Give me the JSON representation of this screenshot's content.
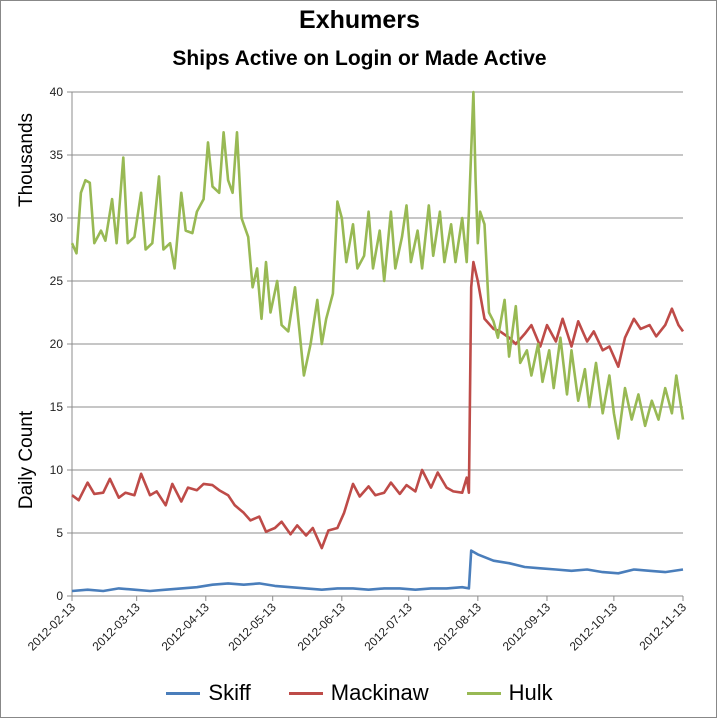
{
  "chart_data": {
    "type": "line",
    "title": "Exhumers",
    "subtitle": "Ships Active on Login or Made Active",
    "ylabel_upper": "Thousands",
    "ylabel_lower": "Daily Count",
    "ylim": [
      0,
      40
    ],
    "yticks": [
      0,
      5,
      10,
      15,
      20,
      25,
      30,
      35,
      40
    ],
    "xlim": [
      "2012-02-13",
      "2012-11-13"
    ],
    "xticks": [
      "2012-02-13",
      "2012-03-13",
      "2012-04-13",
      "2012-05-13",
      "2012-06-13",
      "2012-07-13",
      "2012-08-13",
      "2012-09-13",
      "2012-10-13",
      "2012-11-13"
    ],
    "grid": "horizontal",
    "legend": "bottom",
    "series": [
      {
        "name": "Skiff",
        "color": "#4a7ebb",
        "points": [
          [
            "2012-02-13",
            0.4
          ],
          [
            "2012-02-20",
            0.5
          ],
          [
            "2012-02-27",
            0.4
          ],
          [
            "2012-03-05",
            0.6
          ],
          [
            "2012-03-12",
            0.5
          ],
          [
            "2012-03-19",
            0.4
          ],
          [
            "2012-03-26",
            0.5
          ],
          [
            "2012-04-02",
            0.6
          ],
          [
            "2012-04-09",
            0.7
          ],
          [
            "2012-04-16",
            0.9
          ],
          [
            "2012-04-23",
            1.0
          ],
          [
            "2012-04-30",
            0.9
          ],
          [
            "2012-05-07",
            1.0
          ],
          [
            "2012-05-14",
            0.8
          ],
          [
            "2012-05-21",
            0.7
          ],
          [
            "2012-05-28",
            0.6
          ],
          [
            "2012-06-04",
            0.5
          ],
          [
            "2012-06-11",
            0.6
          ],
          [
            "2012-06-18",
            0.6
          ],
          [
            "2012-06-25",
            0.5
          ],
          [
            "2012-07-02",
            0.6
          ],
          [
            "2012-07-09",
            0.6
          ],
          [
            "2012-07-16",
            0.5
          ],
          [
            "2012-07-23",
            0.6
          ],
          [
            "2012-07-30",
            0.6
          ],
          [
            "2012-08-06",
            0.7
          ],
          [
            "2012-08-09",
            0.6
          ],
          [
            "2012-08-10",
            3.6
          ],
          [
            "2012-08-13",
            3.3
          ],
          [
            "2012-08-20",
            2.8
          ],
          [
            "2012-08-27",
            2.6
          ],
          [
            "2012-09-03",
            2.3
          ],
          [
            "2012-09-10",
            2.2
          ],
          [
            "2012-09-17",
            2.1
          ],
          [
            "2012-09-24",
            2.0
          ],
          [
            "2012-10-01",
            2.1
          ],
          [
            "2012-10-08",
            1.9
          ],
          [
            "2012-10-15",
            1.8
          ],
          [
            "2012-10-22",
            2.1
          ],
          [
            "2012-10-29",
            2.0
          ],
          [
            "2012-11-05",
            1.9
          ],
          [
            "2012-11-13",
            2.1
          ]
        ]
      },
      {
        "name": "Mackinaw",
        "color": "#be4b48",
        "points": [
          [
            "2012-02-13",
            8.0
          ],
          [
            "2012-02-16",
            7.6
          ],
          [
            "2012-02-20",
            9.0
          ],
          [
            "2012-02-23",
            8.1
          ],
          [
            "2012-02-27",
            8.2
          ],
          [
            "2012-03-01",
            9.3
          ],
          [
            "2012-03-05",
            7.8
          ],
          [
            "2012-03-08",
            8.2
          ],
          [
            "2012-03-12",
            8.0
          ],
          [
            "2012-03-15",
            9.7
          ],
          [
            "2012-03-19",
            8.0
          ],
          [
            "2012-03-22",
            8.3
          ],
          [
            "2012-03-26",
            7.2
          ],
          [
            "2012-03-29",
            8.9
          ],
          [
            "2012-04-02",
            7.5
          ],
          [
            "2012-04-05",
            8.6
          ],
          [
            "2012-04-09",
            8.4
          ],
          [
            "2012-04-12",
            8.9
          ],
          [
            "2012-04-16",
            8.8
          ],
          [
            "2012-04-19",
            8.4
          ],
          [
            "2012-04-23",
            8.0
          ],
          [
            "2012-04-26",
            7.2
          ],
          [
            "2012-04-30",
            6.6
          ],
          [
            "2012-05-03",
            6.0
          ],
          [
            "2012-05-07",
            6.3
          ],
          [
            "2012-05-10",
            5.1
          ],
          [
            "2012-05-14",
            5.4
          ],
          [
            "2012-05-17",
            5.9
          ],
          [
            "2012-05-21",
            4.9
          ],
          [
            "2012-05-24",
            5.6
          ],
          [
            "2012-05-28",
            4.8
          ],
          [
            "2012-05-31",
            5.4
          ],
          [
            "2012-06-04",
            3.8
          ],
          [
            "2012-06-07",
            5.2
          ],
          [
            "2012-06-11",
            5.4
          ],
          [
            "2012-06-14",
            6.6
          ],
          [
            "2012-06-18",
            8.9
          ],
          [
            "2012-06-21",
            7.9
          ],
          [
            "2012-06-25",
            8.7
          ],
          [
            "2012-06-28",
            8.0
          ],
          [
            "2012-07-02",
            8.2
          ],
          [
            "2012-07-05",
            9.0
          ],
          [
            "2012-07-09",
            8.1
          ],
          [
            "2012-07-12",
            8.8
          ],
          [
            "2012-07-16",
            8.3
          ],
          [
            "2012-07-19",
            10.0
          ],
          [
            "2012-07-23",
            8.6
          ],
          [
            "2012-07-26",
            9.8
          ],
          [
            "2012-07-30",
            8.6
          ],
          [
            "2012-08-02",
            8.3
          ],
          [
            "2012-08-06",
            8.2
          ],
          [
            "2012-08-08",
            9.4
          ],
          [
            "2012-08-09",
            8.2
          ],
          [
            "2012-08-10",
            24.5
          ],
          [
            "2012-08-11",
            26.5
          ],
          [
            "2012-08-13",
            25.0
          ],
          [
            "2012-08-16",
            22.0
          ],
          [
            "2012-08-20",
            21.2
          ],
          [
            "2012-08-23",
            21.0
          ],
          [
            "2012-08-27",
            20.5
          ],
          [
            "2012-08-30",
            20.0
          ],
          [
            "2012-09-03",
            20.8
          ],
          [
            "2012-09-06",
            21.5
          ],
          [
            "2012-09-10",
            19.8
          ],
          [
            "2012-09-13",
            21.5
          ],
          [
            "2012-09-17",
            20.2
          ],
          [
            "2012-09-20",
            22.0
          ],
          [
            "2012-09-24",
            19.8
          ],
          [
            "2012-09-27",
            21.8
          ],
          [
            "2012-10-01",
            20.2
          ],
          [
            "2012-10-04",
            21.0
          ],
          [
            "2012-10-08",
            19.5
          ],
          [
            "2012-10-11",
            19.8
          ],
          [
            "2012-10-15",
            18.2
          ],
          [
            "2012-10-18",
            20.5
          ],
          [
            "2012-10-22",
            22.0
          ],
          [
            "2012-10-25",
            21.2
          ],
          [
            "2012-10-29",
            21.5
          ],
          [
            "2012-11-01",
            20.6
          ],
          [
            "2012-11-05",
            21.5
          ],
          [
            "2012-11-08",
            22.8
          ],
          [
            "2012-11-11",
            21.5
          ],
          [
            "2012-11-13",
            21.0
          ]
        ]
      },
      {
        "name": "Hulk",
        "color": "#98b954",
        "points": [
          [
            "2012-02-13",
            28.0
          ],
          [
            "2012-02-15",
            27.2
          ],
          [
            "2012-02-17",
            32.0
          ],
          [
            "2012-02-19",
            33.0
          ],
          [
            "2012-02-21",
            32.8
          ],
          [
            "2012-02-23",
            28.0
          ],
          [
            "2012-02-26",
            29.0
          ],
          [
            "2012-02-28",
            28.2
          ],
          [
            "2012-03-02",
            31.5
          ],
          [
            "2012-03-04",
            28.0
          ],
          [
            "2012-03-07",
            34.8
          ],
          [
            "2012-03-09",
            28.0
          ],
          [
            "2012-03-12",
            28.5
          ],
          [
            "2012-03-15",
            32.0
          ],
          [
            "2012-03-17",
            27.5
          ],
          [
            "2012-03-20",
            28.0
          ],
          [
            "2012-03-23",
            33.3
          ],
          [
            "2012-03-25",
            27.5
          ],
          [
            "2012-03-28",
            28.0
          ],
          [
            "2012-03-30",
            26.0
          ],
          [
            "2012-04-02",
            32.0
          ],
          [
            "2012-04-04",
            29.0
          ],
          [
            "2012-04-07",
            28.8
          ],
          [
            "2012-04-09",
            30.5
          ],
          [
            "2012-04-12",
            31.5
          ],
          [
            "2012-04-14",
            36.0
          ],
          [
            "2012-04-16",
            32.5
          ],
          [
            "2012-04-19",
            32.0
          ],
          [
            "2012-04-21",
            36.8
          ],
          [
            "2012-04-23",
            33.0
          ],
          [
            "2012-04-25",
            32.0
          ],
          [
            "2012-04-27",
            36.8
          ],
          [
            "2012-04-29",
            30.0
          ],
          [
            "2012-05-02",
            28.5
          ],
          [
            "2012-05-04",
            24.5
          ],
          [
            "2012-05-06",
            26.0
          ],
          [
            "2012-05-08",
            22.0
          ],
          [
            "2012-05-10",
            26.5
          ],
          [
            "2012-05-12",
            22.5
          ],
          [
            "2012-05-15",
            25.0
          ],
          [
            "2012-05-17",
            21.5
          ],
          [
            "2012-05-20",
            21.0
          ],
          [
            "2012-05-23",
            24.5
          ],
          [
            "2012-05-25",
            21.0
          ],
          [
            "2012-05-27",
            17.5
          ],
          [
            "2012-05-30",
            20.0
          ],
          [
            "2012-06-02",
            23.5
          ],
          [
            "2012-06-04",
            20.0
          ],
          [
            "2012-06-06",
            22.0
          ],
          [
            "2012-06-09",
            24.0
          ],
          [
            "2012-06-11",
            31.3
          ],
          [
            "2012-06-13",
            30.0
          ],
          [
            "2012-06-15",
            26.5
          ],
          [
            "2012-06-18",
            29.5
          ],
          [
            "2012-06-20",
            26.0
          ],
          [
            "2012-06-23",
            27.0
          ],
          [
            "2012-06-25",
            30.5
          ],
          [
            "2012-06-27",
            26.0
          ],
          [
            "2012-06-30",
            29.0
          ],
          [
            "2012-07-02",
            25.0
          ],
          [
            "2012-07-05",
            30.5
          ],
          [
            "2012-07-07",
            26.0
          ],
          [
            "2012-07-10",
            28.5
          ],
          [
            "2012-07-12",
            31.0
          ],
          [
            "2012-07-14",
            26.5
          ],
          [
            "2012-07-17",
            29.0
          ],
          [
            "2012-07-19",
            26.0
          ],
          [
            "2012-07-22",
            31.0
          ],
          [
            "2012-07-24",
            27.0
          ],
          [
            "2012-07-27",
            30.5
          ],
          [
            "2012-07-29",
            26.5
          ],
          [
            "2012-08-01",
            29.5
          ],
          [
            "2012-08-03",
            26.5
          ],
          [
            "2012-08-06",
            30.0
          ],
          [
            "2012-08-08",
            26.5
          ],
          [
            "2012-08-09",
            30.5
          ],
          [
            "2012-08-11",
            40.0
          ],
          [
            "2012-08-12",
            33.0
          ],
          [
            "2012-08-13",
            28.0
          ],
          [
            "2012-08-14",
            30.5
          ],
          [
            "2012-08-16",
            29.5
          ],
          [
            "2012-08-18",
            22.5
          ],
          [
            "2012-08-20",
            21.8
          ],
          [
            "2012-08-22",
            20.5
          ],
          [
            "2012-08-25",
            23.5
          ],
          [
            "2012-08-27",
            19.0
          ],
          [
            "2012-08-30",
            23.0
          ],
          [
            "2012-09-01",
            18.5
          ],
          [
            "2012-09-04",
            19.5
          ],
          [
            "2012-09-06",
            17.5
          ],
          [
            "2012-09-09",
            20.0
          ],
          [
            "2012-09-11",
            17.0
          ],
          [
            "2012-09-14",
            19.5
          ],
          [
            "2012-09-16",
            16.5
          ],
          [
            "2012-09-19",
            20.5
          ],
          [
            "2012-09-22",
            16.0
          ],
          [
            "2012-09-24",
            19.5
          ],
          [
            "2012-09-27",
            15.5
          ],
          [
            "2012-09-30",
            18.0
          ],
          [
            "2012-10-02",
            15.0
          ],
          [
            "2012-10-05",
            18.5
          ],
          [
            "2012-10-08",
            14.5
          ],
          [
            "2012-10-11",
            17.5
          ],
          [
            "2012-10-13",
            14.5
          ],
          [
            "2012-10-15",
            12.5
          ],
          [
            "2012-10-18",
            16.5
          ],
          [
            "2012-10-21",
            14.0
          ],
          [
            "2012-10-24",
            16.0
          ],
          [
            "2012-10-27",
            13.5
          ],
          [
            "2012-10-30",
            15.5
          ],
          [
            "2012-11-02",
            14.0
          ],
          [
            "2012-11-05",
            16.5
          ],
          [
            "2012-11-08",
            14.5
          ],
          [
            "2012-11-10",
            17.5
          ],
          [
            "2012-11-13",
            14.0
          ]
        ]
      }
    ]
  }
}
